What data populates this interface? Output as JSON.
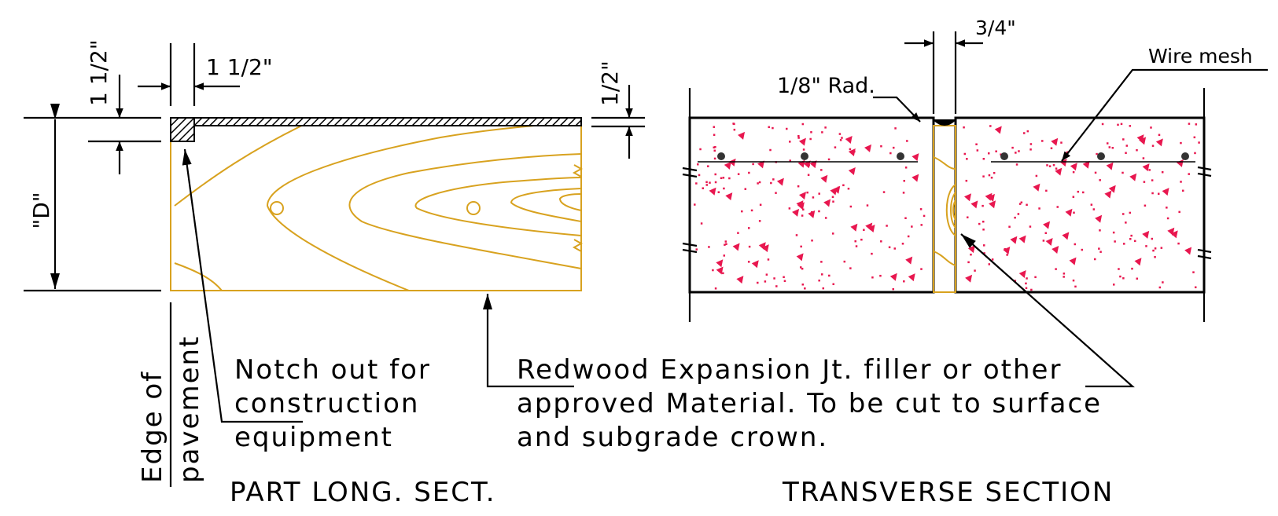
{
  "long_section": {
    "title": "PART LONG. SECT.",
    "dim_top_horizontal": "1 1/2\"",
    "dim_top_vertical": "1 1/2\"",
    "dim_depth": "\"D\"",
    "dim_right_vertical": "1/2\"",
    "edge_label_line1": "Edge of",
    "edge_label_line2": "pavement",
    "notch_note": [
      "Notch out for",
      "construction",
      "equipment"
    ]
  },
  "transverse_section": {
    "title": "TRANSVERSE SECTION",
    "dim_joint_width": "3/4\"",
    "radius_label": "1/8\" Rad.",
    "wire_mesh_label": "Wire mesh"
  },
  "filler_note": [
    "Redwood Expansion Jt. filler or other",
    "approved Material.  To be cut to surface",
    "and subgrade crown."
  ],
  "colors": {
    "line": "#000000",
    "wood": "#d8a21f",
    "aggregate": "#e8174f"
  }
}
